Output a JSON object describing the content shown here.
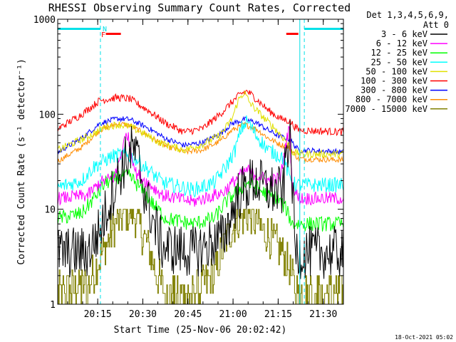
{
  "chart_data": {
    "type": "line",
    "title": "RHESSI Observing Summary Count Rates, Corrected",
    "xlabel": "Start Time (25-Nov-06 20:02:42)",
    "ylabel": "Corrected Count Rate (s⁻¹ detector⁻¹)",
    "ylog": true,
    "ylim": [
      1,
      1000
    ],
    "xlim_min": [
      0,
      95
    ],
    "xticks": [
      {
        "min": 13.3,
        "label": "20:15"
      },
      {
        "min": 28.3,
        "label": "20:30"
      },
      {
        "min": 43.3,
        "label": "20:45"
      },
      {
        "min": 58.3,
        "label": "21:00"
      },
      {
        "min": 73.3,
        "label": "21:15"
      },
      {
        "min": 88.3,
        "label": "21:30"
      }
    ],
    "yticks": [
      {
        "v": 1,
        "label": "1"
      },
      {
        "v": 10,
        "label": "10"
      },
      {
        "v": 100,
        "label": "100"
      },
      {
        "v": 1000,
        "label": "1000"
      }
    ],
    "legend": {
      "position": "top-right",
      "header": [
        "Det 1,3,4,5,6,9,",
        "Att 0"
      ],
      "entries": [
        {
          "label": "3 - 6 keV",
          "color": "#000000"
        },
        {
          "label": "6 - 12 keV",
          "color": "#ff00ff"
        },
        {
          "label": "12 - 25 keV",
          "color": "#00ff00"
        },
        {
          "label": "25 - 50 keV",
          "color": "#00ffff"
        },
        {
          "label": "50 - 100 keV",
          "color": "#e0e000"
        },
        {
          "label": "100 - 300 keV",
          "color": "#ff0000"
        },
        {
          "label": "300 - 800 keV",
          "color": "#0000ff"
        },
        {
          "label": "800 - 7000 keV",
          "color": "#ff8c00"
        },
        {
          "label": "7000 - 15000 keV",
          "color": "#808000"
        }
      ]
    },
    "series": [
      {
        "name": "3 - 6 keV",
        "color": "#000000",
        "noise": 0.28,
        "points": [
          [
            0,
            3.5
          ],
          [
            10,
            3.5
          ],
          [
            14,
            6
          ],
          [
            19,
            18
          ],
          [
            22,
            30
          ],
          [
            25,
            44
          ],
          [
            27,
            30
          ],
          [
            29,
            15
          ],
          [
            32,
            7
          ],
          [
            35,
            4
          ],
          [
            45,
            3.5
          ],
          [
            55,
            5
          ],
          [
            60,
            14
          ],
          [
            65,
            20
          ],
          [
            70,
            16
          ],
          [
            75,
            15
          ],
          [
            76,
            40
          ],
          [
            77,
            60
          ],
          [
            78,
            20
          ],
          [
            79,
            3.5
          ],
          [
            95,
            3.5
          ]
        ]
      },
      {
        "name": "6 - 12 keV",
        "color": "#ff00ff",
        "noise": 0.07,
        "points": [
          [
            0,
            13
          ],
          [
            10,
            14
          ],
          [
            14,
            19
          ],
          [
            19,
            22
          ],
          [
            21,
            38
          ],
          [
            23,
            65
          ],
          [
            24.5,
            40
          ],
          [
            26,
            24
          ],
          [
            30,
            19
          ],
          [
            35,
            14
          ],
          [
            45,
            12
          ],
          [
            55,
            15
          ],
          [
            60,
            22
          ],
          [
            63,
            26
          ],
          [
            66,
            23
          ],
          [
            70,
            20
          ],
          [
            74,
            21
          ],
          [
            76,
            50
          ],
          [
            77,
            75
          ],
          [
            78,
            18
          ],
          [
            80,
            13
          ],
          [
            95,
            13
          ]
        ]
      },
      {
        "name": "12 - 25 keV",
        "color": "#00ff00",
        "noise": 0.08,
        "points": [
          [
            0,
            8
          ],
          [
            8,
            9
          ],
          [
            12,
            13
          ],
          [
            16,
            19
          ],
          [
            20,
            22
          ],
          [
            24,
            22
          ],
          [
            28,
            16
          ],
          [
            32,
            11
          ],
          [
            36,
            8
          ],
          [
            45,
            7
          ],
          [
            52,
            8
          ],
          [
            56,
            12
          ],
          [
            60,
            16
          ],
          [
            63,
            19
          ],
          [
            66,
            17
          ],
          [
            70,
            14
          ],
          [
            73,
            13
          ],
          [
            76,
            10
          ],
          [
            78,
            7
          ],
          [
            81,
            7
          ],
          [
            95,
            7
          ]
        ]
      },
      {
        "name": "25 - 50 keV",
        "color": "#00ffff",
        "noise": 0.08,
        "points": [
          [
            0,
            17
          ],
          [
            8,
            20
          ],
          [
            12,
            28
          ],
          [
            18,
            36
          ],
          [
            22,
            38
          ],
          [
            26,
            34
          ],
          [
            30,
            26
          ],
          [
            35,
            19
          ],
          [
            45,
            16
          ],
          [
            52,
            19
          ],
          [
            56,
            28
          ],
          [
            59,
            42
          ],
          [
            61,
            70
          ],
          [
            63,
            85
          ],
          [
            66,
            60
          ],
          [
            70,
            42
          ],
          [
            75,
            35
          ],
          [
            77,
            22
          ],
          [
            79,
            18
          ],
          [
            95,
            18
          ]
        ]
      },
      {
        "name": "50 - 100 keV",
        "color": "#e0e000",
        "noise": 0.04,
        "points": [
          [
            0,
            42
          ],
          [
            10,
            58
          ],
          [
            16,
            74
          ],
          [
            20,
            78
          ],
          [
            24,
            74
          ],
          [
            28,
            64
          ],
          [
            34,
            50
          ],
          [
            42,
            42
          ],
          [
            48,
            48
          ],
          [
            54,
            60
          ],
          [
            58,
            90
          ],
          [
            60,
            140
          ],
          [
            62,
            170
          ],
          [
            64,
            130
          ],
          [
            68,
            95
          ],
          [
            72,
            72
          ],
          [
            76,
            52
          ],
          [
            78,
            40
          ],
          [
            81,
            38
          ],
          [
            95,
            38
          ]
        ]
      },
      {
        "name": "100 - 300 keV",
        "color": "#ff0000",
        "noise": 0.04,
        "points": [
          [
            0,
            70
          ],
          [
            8,
            100
          ],
          [
            14,
            140
          ],
          [
            20,
            150
          ],
          [
            24,
            145
          ],
          [
            30,
            110
          ],
          [
            36,
            80
          ],
          [
            42,
            65
          ],
          [
            48,
            70
          ],
          [
            54,
            100
          ],
          [
            58,
            135
          ],
          [
            61,
            165
          ],
          [
            63,
            175
          ],
          [
            66,
            145
          ],
          [
            70,
            110
          ],
          [
            74,
            90
          ],
          [
            77,
            85
          ],
          [
            80,
            68
          ],
          [
            95,
            65
          ]
        ]
      },
      {
        "name": "300 - 800 keV",
        "color": "#0000ff",
        "noise": 0.03,
        "points": [
          [
            0,
            40
          ],
          [
            8,
            56
          ],
          [
            14,
            80
          ],
          [
            20,
            90
          ],
          [
            24,
            88
          ],
          [
            30,
            72
          ],
          [
            36,
            55
          ],
          [
            42,
            47
          ],
          [
            48,
            50
          ],
          [
            54,
            62
          ],
          [
            58,
            80
          ],
          [
            62,
            88
          ],
          [
            66,
            82
          ],
          [
            70,
            68
          ],
          [
            74,
            58
          ],
          [
            77,
            55
          ],
          [
            80,
            42
          ],
          [
            95,
            40
          ]
        ]
      },
      {
        "name": "800 - 7000 keV",
        "color": "#ff8c00",
        "noise": 0.03,
        "points": [
          [
            0,
            32
          ],
          [
            8,
            45
          ],
          [
            14,
            68
          ],
          [
            20,
            80
          ],
          [
            24,
            76
          ],
          [
            30,
            60
          ],
          [
            36,
            46
          ],
          [
            42,
            40
          ],
          [
            48,
            42
          ],
          [
            54,
            52
          ],
          [
            58,
            68
          ],
          [
            62,
            78
          ],
          [
            66,
            70
          ],
          [
            70,
            56
          ],
          [
            74,
            48
          ],
          [
            77,
            45
          ],
          [
            80,
            34
          ],
          [
            95,
            33
          ]
        ]
      },
      {
        "name": "7000 - 15000 keV",
        "color": "#808000",
        "noise": 0.22,
        "step": true,
        "points": [
          [
            0,
            1.3
          ],
          [
            10,
            1.6
          ],
          [
            14,
            3
          ],
          [
            19,
            7
          ],
          [
            23,
            10
          ],
          [
            26,
            8
          ],
          [
            30,
            4
          ],
          [
            33,
            2
          ],
          [
            36,
            1.3
          ],
          [
            45,
            1.3
          ],
          [
            52,
            2
          ],
          [
            56,
            5
          ],
          [
            60,
            8
          ],
          [
            64,
            9
          ],
          [
            68,
            6
          ],
          [
            72,
            4.5
          ],
          [
            76,
            3
          ],
          [
            79,
            1.3
          ],
          [
            95,
            1.3
          ]
        ]
      }
    ],
    "annotations": {
      "night_bars": [
        [
          0,
          14.2
        ],
        [
          82,
          95
        ]
      ],
      "saa_bars": [
        [
          0,
          14.2
        ],
        [
          82,
          95
        ]
      ],
      "n_label": "N",
      "f_label": "F",
      "flare_bars": [
        [
          16,
          21
        ],
        [
          76,
          80
        ]
      ],
      "dashed_lines": [
        14.2,
        82
      ],
      "solid_lines": [
        0,
        80.5
      ],
      "bar_color": "#00e0e8",
      "flare_color": "#ff0000"
    },
    "footer_timestamp": "18-Oct-2021 05:02"
  }
}
